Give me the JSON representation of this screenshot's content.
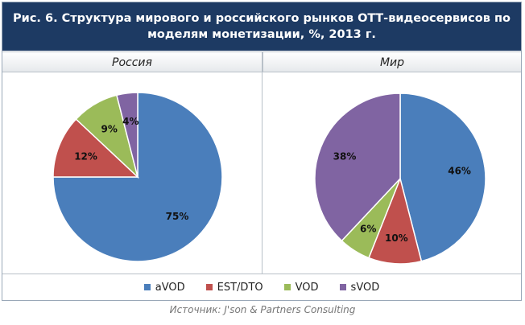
{
  "title_lines": [
    "Рис. 6. Структура мирового и российского рынков ОТТ-видеосервисов по",
    "моделям монетизации, %, 2013 г."
  ],
  "source": "Источник: J'son & Partners Consulting",
  "colors": {
    "aVOD": "#4a7ebb",
    "EST/DTO": "#c0504d",
    "VOD": "#9bbb59",
    "sVOD": "#8064a2"
  },
  "chart_data": [
    {
      "type": "pie",
      "title": "Россия",
      "categories": [
        "aVOD",
        "EST/DTO",
        "VOD",
        "sVOD"
      ],
      "values": [
        75,
        12,
        9,
        4
      ],
      "labels": [
        "75%",
        "12%",
        "9%",
        "4%"
      ]
    },
    {
      "type": "pie",
      "title": "Мир",
      "categories": [
        "aVOD",
        "EST/DTO",
        "VOD",
        "sVOD"
      ],
      "values": [
        46,
        10,
        6,
        38
      ],
      "labels": [
        "46%",
        "10%",
        "6%",
        "38%"
      ]
    }
  ],
  "legend": [
    "aVOD",
    "EST/DTO",
    "VOD",
    "sVOD"
  ]
}
